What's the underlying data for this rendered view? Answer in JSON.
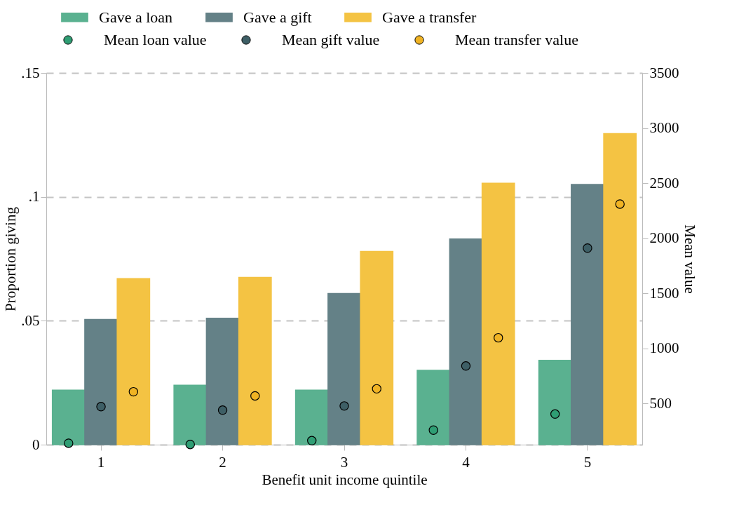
{
  "chart_data": {
    "type": "bar",
    "xlabel": "Benefit unit income quintile",
    "ylabel": "Proportion giving",
    "y2label": "Mean value",
    "categories": [
      "1",
      "2",
      "3",
      "4",
      "5"
    ],
    "series": [
      {
        "name": "Gave a loan",
        "color": "#5ab190",
        "values": [
          0.022,
          0.024,
          0.022,
          0.03,
          0.034
        ]
      },
      {
        "name": "Gave a gift",
        "color": "#648187",
        "values": [
          0.0505,
          0.051,
          0.061,
          0.083,
          0.105
        ]
      },
      {
        "name": "Gave a transfer",
        "color": "#f4c343",
        "values": [
          0.067,
          0.0675,
          0.078,
          0.1055,
          0.1255
        ]
      },
      {
        "name": "Mean loan value",
        "type": "scatter",
        "axis": "y2",
        "color": "#2f9e74",
        "values": [
          139,
          128,
          162,
          258,
          404
        ]
      },
      {
        "name": "Mean gift value",
        "type": "scatter",
        "axis": "y2",
        "color": "#3e5f66",
        "values": [
          471,
          439,
          477,
          840,
          1910
        ]
      },
      {
        "name": "Mean transfer value",
        "type": "scatter",
        "axis": "y2",
        "color": "#f0b323",
        "values": [
          606,
          569,
          633,
          1096,
          2310
        ]
      }
    ],
    "ylim": [
      0,
      0.15
    ],
    "yticks": [
      0,
      {
        "value": 0.05,
        "label": ".05"
      },
      {
        "value": 0.1,
        "label": ".1"
      },
      {
        "value": 0.15,
        "label": ".15"
      }
    ],
    "y2lim": [
      126,
      3500
    ],
    "y2ticks": [
      500,
      1000,
      1500,
      2000,
      2500,
      3000,
      3500
    ],
    "grid": "y",
    "legend": "top",
    "marker": "circle"
  }
}
